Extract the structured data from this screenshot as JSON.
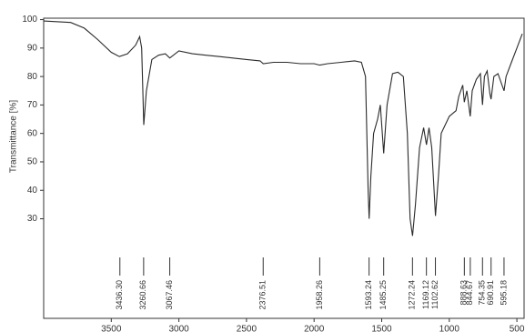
{
  "chart_data": {
    "type": "line",
    "y_label": "Transmittance [%]",
    "xlim": [
      4000,
      440
    ],
    "ylim": [
      -5,
      100.5
    ],
    "xticks": [
      3500,
      3000,
      2500,
      2000,
      1500,
      1000,
      500
    ],
    "yticks": [
      30,
      40,
      50,
      60,
      70,
      80,
      90,
      100
    ],
    "color": "#2a2a2a",
    "x": [
      4000,
      3800,
      3700,
      3600,
      3500,
      3440,
      3380,
      3320,
      3290,
      3275,
      3260,
      3240,
      3200,
      3150,
      3100,
      3067,
      3000,
      2900,
      2800,
      2700,
      2600,
      2500,
      2400,
      2376,
      2300,
      2200,
      2100,
      2000,
      1958,
      1900,
      1800,
      1700,
      1650,
      1620,
      1600,
      1593,
      1580,
      1560,
      1530,
      1510,
      1485,
      1460,
      1420,
      1380,
      1340,
      1310,
      1290,
      1272,
      1250,
      1220,
      1190,
      1169,
      1150,
      1130,
      1102,
      1080,
      1060,
      1000,
      950,
      930,
      900,
      889,
      870,
      845,
      830,
      800,
      770,
      754,
      740,
      720,
      700,
      691,
      670,
      640,
      610,
      595,
      580,
      540,
      500,
      460
    ],
    "values": [
      99.5,
      99,
      97,
      93,
      88.5,
      87,
      88,
      91,
      94,
      90,
      63,
      75,
      86,
      87.5,
      88,
      86.5,
      89,
      88,
      87.5,
      87,
      86.5,
      86,
      85.5,
      84.5,
      85,
      85,
      84.5,
      84.5,
      84,
      84.5,
      85,
      85.5,
      85,
      80,
      40,
      30,
      45,
      60,
      65,
      70,
      53,
      70,
      81,
      81.5,
      80,
      60,
      30,
      24,
      35,
      55,
      62,
      56,
      62,
      55,
      31,
      45,
      60,
      66,
      68,
      73,
      77,
      71,
      75,
      66,
      75,
      79,
      81,
      70,
      80,
      82,
      74,
      72,
      80,
      81,
      77,
      75,
      80,
      85,
      90,
      95
    ],
    "annotations": [
      {
        "value": 3436.3,
        "label": "3436.30"
      },
      {
        "value": 3260.66,
        "label": "3260.66"
      },
      {
        "value": 3067.46,
        "label": "3067.46"
      },
      {
        "value": 2376.51,
        "label": "2376.51"
      },
      {
        "value": 1958.26,
        "label": "1958.26"
      },
      {
        "value": 1593.24,
        "label": "1593.24"
      },
      {
        "value": 1485.25,
        "label": "1485.25"
      },
      {
        "value": 1272.24,
        "label": "1272.24"
      },
      {
        "value": 1169.12,
        "label": "1169.12"
      },
      {
        "value": 1102.62,
        "label": "1102.62"
      },
      {
        "value": 888.63,
        "label": "888.63"
      },
      {
        "value": 844.67,
        "label": "844.67"
      },
      {
        "value": 754.35,
        "label": "754.35"
      },
      {
        "value": 690.91,
        "label": "690.91"
      },
      {
        "value": 595.18,
        "label": "595.18"
      }
    ]
  }
}
